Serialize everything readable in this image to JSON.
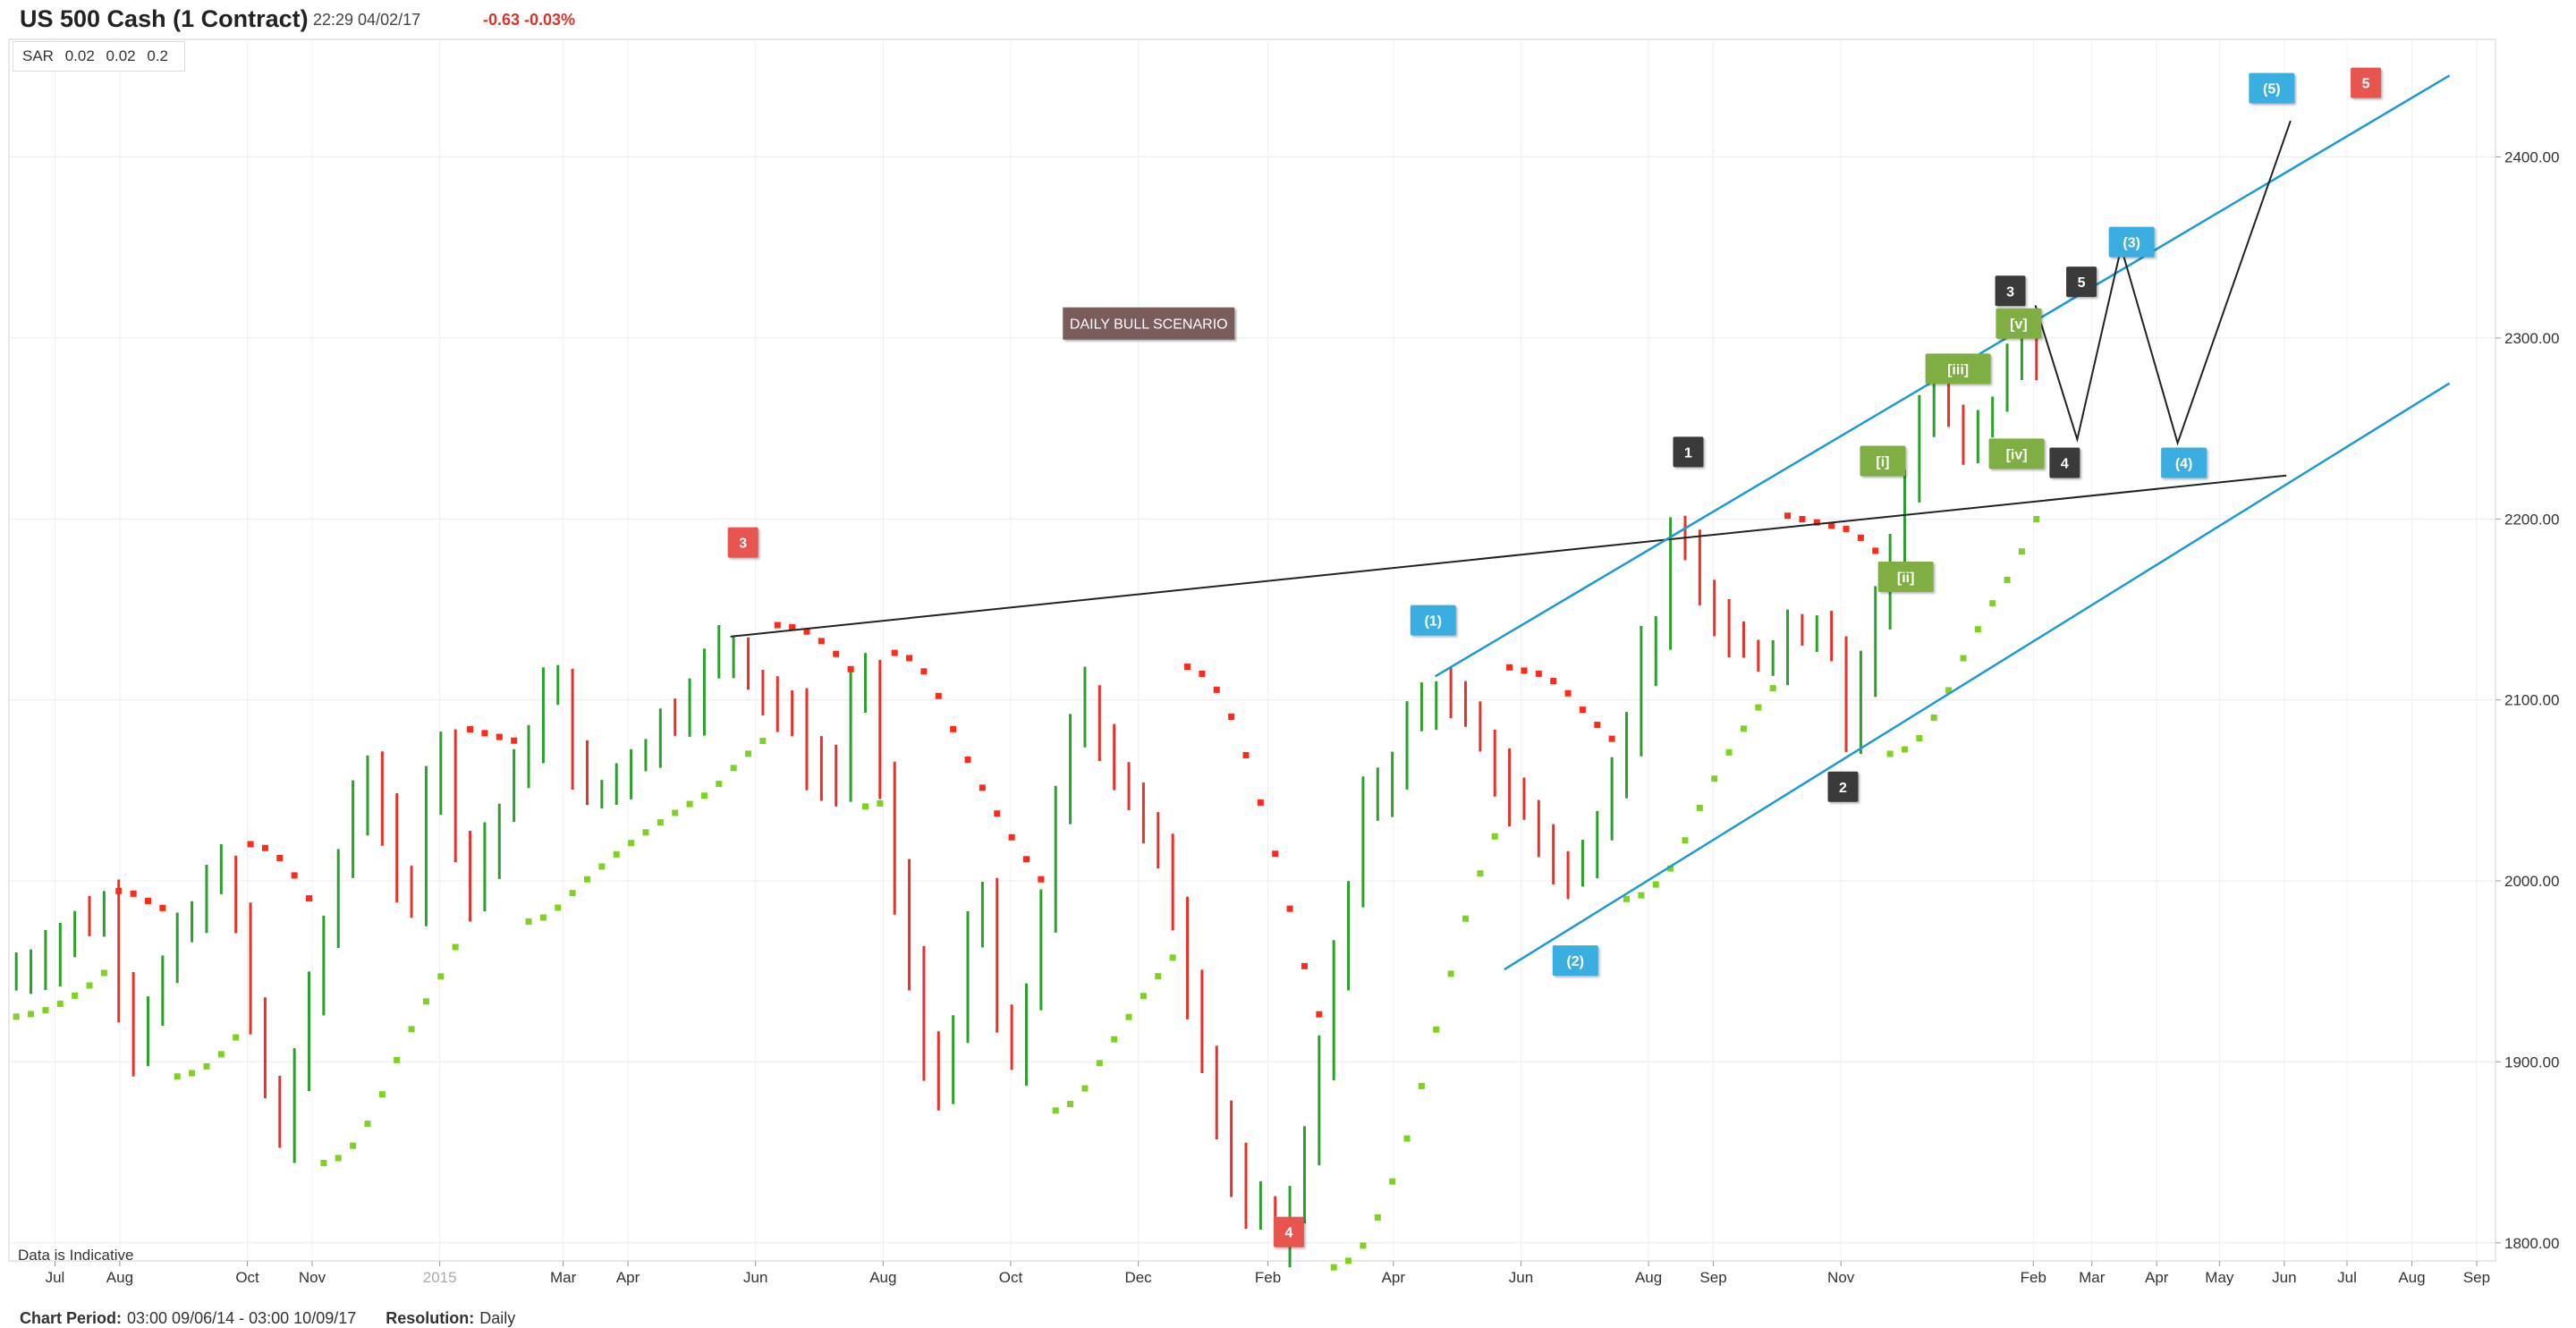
{
  "header": {
    "instrument": "US 500 Cash (1 Contract)",
    "time": "22:29 04/02/17",
    "change": "-0.63  -0.03%"
  },
  "indicator": {
    "name": "SAR",
    "params": [
      "0.02",
      "0.02",
      "0.2"
    ]
  },
  "note": "Data is Indicative",
  "footer": {
    "period_label": "Chart Period:",
    "period_value": "03:00 09/06/14 - 03:00 10/09/17",
    "resolution_label": "Resolution:",
    "resolution_value": "Daily"
  },
  "colors": {
    "up": "#2ca02c",
    "down": "#e8312a",
    "sar_up": "#7ed321",
    "sar_down": "#ff2a1a",
    "channel": "#1a9ad6",
    "trendline": "#222222",
    "label_green": "#7fae42",
    "label_blue": "#3aaee0",
    "label_dark": "#3a3a3a",
    "label_red": "#e8554e",
    "scenario": "#7a5c5c"
  },
  "chart_data": {
    "type": "ohlc",
    "y_range": [
      1790,
      2465
    ],
    "y_ticks": [
      "2400.00",
      "2300.00",
      "2200.00",
      "2100.00",
      "2000.00",
      "1900.00",
      "1800.00"
    ],
    "x_ticks": [
      "Jul",
      "Aug",
      "Oct",
      "Nov",
      "2015",
      "Mar",
      "Apr",
      "Jun",
      "Aug",
      "Oct",
      "Dec",
      "Feb",
      "Apr",
      "Jun",
      "Aug",
      "Sep",
      "Nov",
      "Feb",
      "Mar",
      "Apr",
      "May",
      "Jun",
      "Jul",
      "Aug",
      "Sep"
    ],
    "price_path": [
      [
        "2014-06-09",
        1945
      ],
      [
        "2014-06-30",
        1968
      ],
      [
        "2014-07-24",
        1985
      ],
      [
        "2014-08-07",
        1915
      ],
      [
        "2014-09-19",
        2012
      ],
      [
        "2014-10-15",
        1850
      ],
      [
        "2014-11-25",
        2070
      ],
      [
        "2014-12-16",
        1975
      ],
      [
        "2014-12-29",
        2090
      ],
      [
        "2015-01-15",
        1995
      ],
      [
        "2015-02-25",
        2115
      ],
      [
        "2015-03-11",
        2040
      ],
      [
        "2015-05-21",
        2133
      ],
      [
        "2015-07-08",
        2048
      ],
      [
        "2015-07-20",
        2130
      ],
      [
        "2015-08-24",
        1870
      ],
      [
        "2015-09-17",
        1995
      ],
      [
        "2015-09-29",
        1875
      ],
      [
        "2015-11-03",
        2110
      ],
      [
        "2015-12-14",
        2000
      ],
      [
        "2016-01-20",
        1810
      ],
      [
        "2016-02-11",
        1812
      ],
      [
        "2016-03-18",
        2040
      ],
      [
        "2016-04-20",
        2110
      ],
      [
        "2016-06-27",
        1995
      ],
      [
        "2016-08-15",
        2190
      ],
      [
        "2016-09-09",
        2120
      ],
      [
        "2016-10-25",
        2150
      ],
      [
        "2016-11-04",
        2085
      ],
      [
        "2016-12-13",
        2275
      ],
      [
        "2016-12-30",
        2235
      ],
      [
        "2017-01-26",
        2300
      ],
      [
        "2017-02-03",
        2295
      ]
    ],
    "labels": [
      {
        "text": "3",
        "style": "red",
        "date": "2015-05-26",
        "price": 2187
      },
      {
        "text": "4",
        "style": "red",
        "date": "2016-02-11",
        "price": 1806
      },
      {
        "text": "5",
        "style": "red",
        "date": "2017-07-10",
        "price": 2441
      },
      {
        "text": "(1)",
        "style": "blue",
        "date": "2016-04-20",
        "price": 2144
      },
      {
        "text": "(2)",
        "style": "blue",
        "date": "2016-06-27",
        "price": 1956
      },
      {
        "text": "(3)",
        "style": "blue",
        "date": "2017-03-20",
        "price": 2353
      },
      {
        "text": "(4)",
        "style": "blue",
        "date": "2017-04-14",
        "price": 2231
      },
      {
        "text": "(5)",
        "style": "blue",
        "date": "2017-05-26",
        "price": 2438
      },
      {
        "text": "1",
        "style": "dark",
        "date": "2016-08-20",
        "price": 2237
      },
      {
        "text": "2",
        "style": "dark",
        "date": "2016-11-02",
        "price": 2052
      },
      {
        "text": "3",
        "style": "dark",
        "date": "2017-01-21",
        "price": 2326
      },
      {
        "text": "4",
        "style": "dark",
        "date": "2017-02-16",
        "price": 2231
      },
      {
        "text": "5",
        "style": "dark",
        "date": "2017-02-24",
        "price": 2331
      },
      {
        "text": "[i]",
        "style": "green",
        "date": "2016-11-21",
        "price": 2232
      },
      {
        "text": "[ii]",
        "style": "green",
        "date": "2016-12-02",
        "price": 2168
      },
      {
        "text": "[iii]",
        "style": "green",
        "date": "2016-12-27",
        "price": 2283
      },
      {
        "text": "[iv]",
        "style": "green",
        "date": "2017-01-24",
        "price": 2236
      },
      {
        "text": "[v]",
        "style": "green",
        "date": "2017-01-25",
        "price": 2308
      }
    ],
    "scenario_label": {
      "text": "DAILY BULL SCENARIO",
      "date": "2015-12-06",
      "price": 2308
    },
    "channel_upper": [
      [
        "2016-04-21",
        2113
      ],
      [
        "2017-08-19",
        2445
      ]
    ],
    "channel_lower": [
      [
        "2016-05-24",
        1951
      ],
      [
        "2017-08-19",
        2275
      ]
    ],
    "trendline": [
      [
        "2015-05-20",
        2135
      ],
      [
        "2017-06-02",
        2224
      ]
    ],
    "projection": [
      [
        "2017-02-02",
        2318
      ],
      [
        "2017-02-22",
        2244
      ],
      [
        "2017-03-15",
        2350
      ],
      [
        "2017-04-11",
        2242
      ],
      [
        "2017-06-04",
        2420
      ]
    ]
  }
}
